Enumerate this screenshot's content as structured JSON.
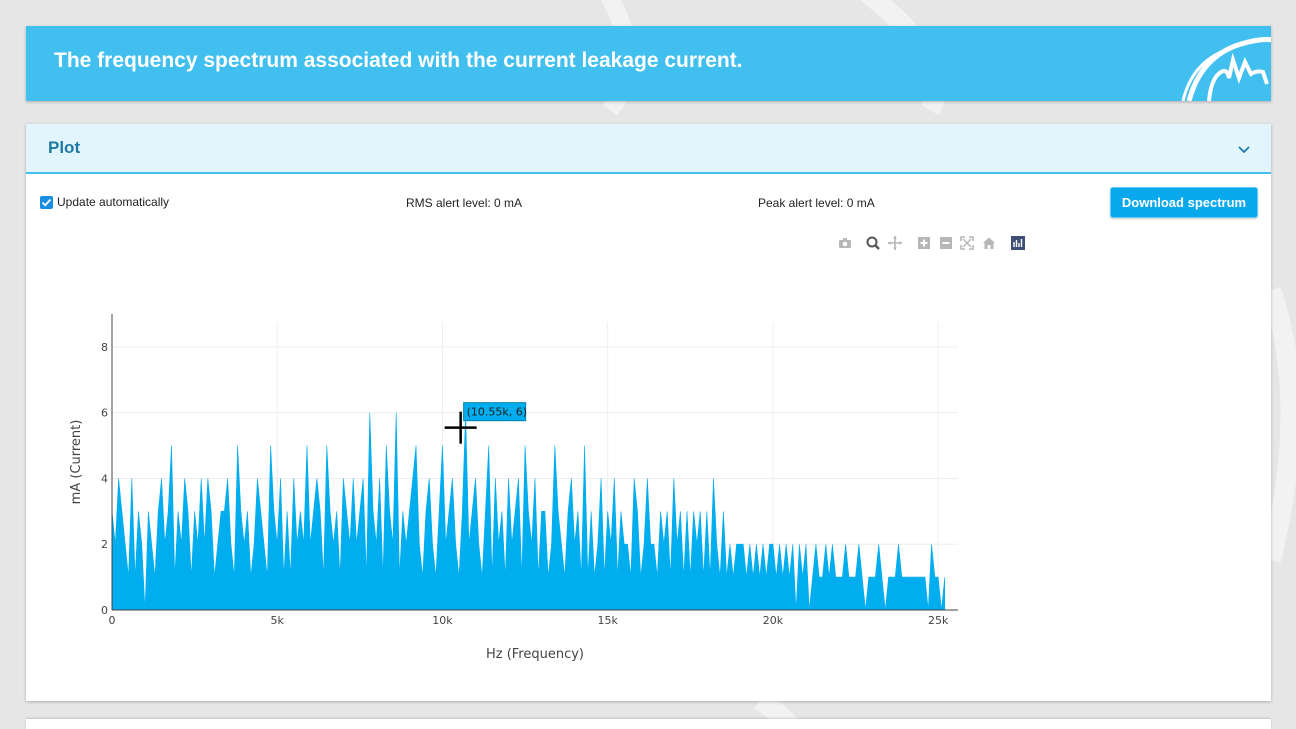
{
  "banner": {
    "title": "The frequency spectrum associated with the current leakage current."
  },
  "panel": {
    "title": "Plot",
    "collapse_icon": "chevron-down-icon"
  },
  "controls": {
    "auto_update_label": "Update automatically",
    "auto_update_checked": true,
    "rms_alert": "RMS alert level: 0 mA",
    "peak_alert": "Peak alert level: 0 mA",
    "download_label": "Download spectrum"
  },
  "modebar": [
    {
      "icon": "camera-icon",
      "label": "Download plot as a png"
    },
    {
      "icon": "zoom-icon",
      "label": "Zoom"
    },
    {
      "icon": "pan-icon",
      "label": "Pan"
    },
    {
      "icon": "zoom-in-icon",
      "label": "Zoom in"
    },
    {
      "icon": "zoom-out-icon",
      "label": "Zoom out"
    },
    {
      "icon": "autoscale-icon",
      "label": "Autoscale"
    },
    {
      "icon": "home-icon",
      "label": "Reset axes"
    },
    {
      "icon": "plotly-logo-icon",
      "label": "Produced with Plotly"
    }
  ],
  "colors": {
    "accent": "#41bfef",
    "fill": "#00adee",
    "button": "#09a8ec",
    "header_text": "#1f7aa3"
  },
  "chart_data": {
    "type": "area",
    "title": "",
    "xlabel": "Hz (Frequency)",
    "ylabel": "mA (Current)",
    "xlim": [
      0,
      25600
    ],
    "ylim": [
      0,
      9
    ],
    "xticks": [
      0,
      5000,
      10000,
      15000,
      20000,
      25000
    ],
    "xtick_labels": [
      "0",
      "5k",
      "10k",
      "15k",
      "20k",
      "25k"
    ],
    "yticks": [
      0,
      2,
      4,
      6,
      8
    ],
    "ytick_labels": [
      "0",
      "2",
      "4",
      "6",
      "8"
    ],
    "grid": true,
    "hover": {
      "x": 10550,
      "y": 6,
      "label": "(10.55k, 6)"
    },
    "series": [
      {
        "x_start": 0,
        "x_step": 100,
        "values": [
          3,
          2,
          4,
          3,
          2,
          1,
          4,
          1,
          3,
          2,
          0,
          3,
          2,
          1,
          3,
          4,
          2,
          3,
          5,
          1,
          3,
          2,
          4,
          3,
          1,
          3,
          2,
          4,
          2,
          4,
          3,
          1,
          2,
          3,
          3,
          4,
          2,
          1,
          5,
          3,
          2,
          3,
          1,
          2,
          4,
          3,
          2,
          1,
          5,
          3,
          2,
          4,
          1,
          3,
          1,
          4,
          2,
          3,
          2,
          5,
          2,
          3,
          4,
          3,
          1,
          5,
          3,
          2,
          3,
          1,
          4,
          3,
          2,
          4,
          2,
          3,
          4,
          1,
          6,
          3,
          2,
          4,
          1,
          5,
          3,
          2,
          6,
          1,
          3,
          2,
          3,
          4,
          5,
          2,
          1,
          3,
          4,
          2,
          1,
          3,
          5,
          2,
          3,
          4,
          2,
          1,
          3,
          6,
          2,
          3,
          4,
          2,
          1,
          3,
          5,
          1,
          4,
          2,
          3,
          1,
          4,
          2,
          3,
          4,
          1,
          5,
          3,
          2,
          4,
          1,
          3,
          3,
          1,
          2,
          5,
          3,
          2,
          1,
          3,
          4,
          2,
          3,
          1,
          5,
          1,
          3,
          1,
          2,
          4,
          1,
          3,
          2,
          4,
          1,
          3,
          2,
          2,
          1,
          4,
          3,
          1,
          2,
          4,
          2,
          2,
          1,
          3,
          2,
          3,
          1,
          4,
          2,
          3,
          1,
          3,
          1,
          3,
          2,
          3,
          1,
          3,
          1,
          4,
          2,
          1,
          3,
          1,
          2,
          1,
          2,
          2,
          2,
          1,
          2,
          1,
          2,
          1,
          2,
          1,
          2,
          2,
          1,
          2,
          1,
          2,
          1,
          2,
          0,
          2,
          1,
          2,
          0,
          1,
          2,
          1,
          1,
          2,
          1,
          2,
          1,
          1,
          1,
          2,
          1,
          1,
          1,
          2,
          1,
          0,
          1,
          1,
          1,
          2,
          1,
          0,
          1,
          1,
          1,
          2,
          1,
          1,
          1,
          1,
          1,
          1,
          1,
          1,
          0,
          2,
          1,
          1,
          0,
          1
        ]
      }
    ]
  }
}
